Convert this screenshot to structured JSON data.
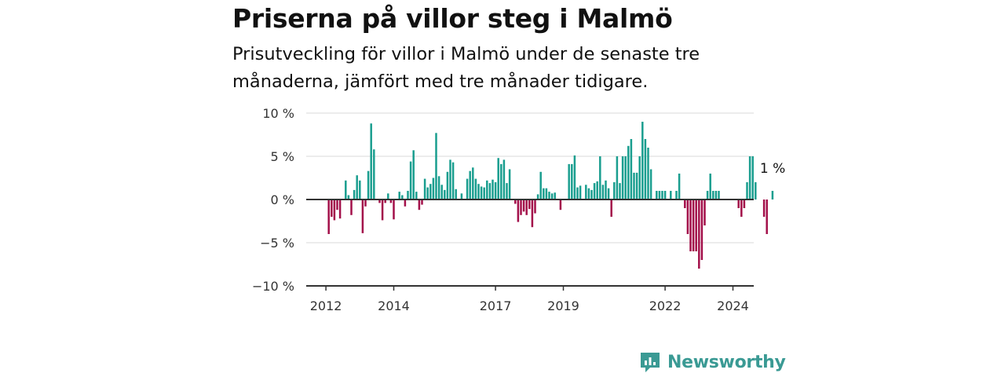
{
  "header": {
    "title": "Priserna på villor steg i Malmö",
    "subtitle": "Prisutveckling för villor i Malmö under de senaste tre månaderna, jämfört med tre månader tidigare."
  },
  "brand": {
    "name": "Newsworthy",
    "icon": "newsworthy-logo-icon"
  },
  "colors": {
    "positive": "#1a9e8f",
    "negative": "#a3104a",
    "grid": "#d9d9d9",
    "axis": "#333333"
  },
  "chart_data": {
    "type": "bar",
    "start": "2011-10",
    "unit": "%",
    "y_ticks": [
      "10 %",
      "5 %",
      "0 %",
      "−5 %",
      "−10 %"
    ],
    "y_tick_values": [
      10,
      5,
      0,
      -5,
      -10
    ],
    "ylim": [
      -10,
      10
    ],
    "x_ticks": [
      "2012",
      "2014",
      "2017",
      "2019",
      "2022",
      "2024"
    ],
    "annotation": {
      "label": "1 %",
      "value": 1
    },
    "grid": true,
    "values": [
      0,
      0,
      0,
      0,
      -4,
      -2,
      -2.4,
      -1.2,
      -2.2,
      0,
      2.2,
      0.5,
      -1.8,
      1.1,
      2.8,
      2.2,
      -3.9,
      -0.8,
      3.3,
      8.8,
      5.8,
      0,
      -0.4,
      -2.4,
      -0.4,
      0.7,
      -0.4,
      -2.3,
      0,
      0.9,
      0.5,
      -0.8,
      1,
      4.4,
      5.7,
      0.9,
      -1.2,
      -0.6,
      2.4,
      1.4,
      1.8,
      2.5,
      7.7,
      2.7,
      1.7,
      1.1,
      3.2,
      4.6,
      4.3,
      1.2,
      0,
      0.7,
      0,
      2.4,
      3.3,
      3.7,
      2.4,
      1.8,
      1.5,
      1.4,
      2.2,
      1.9,
      2.3,
      2,
      4.8,
      4.1,
      4.6,
      1.9,
      3.5,
      0,
      -0.5,
      -2.6,
      -1.8,
      -1.4,
      -1.8,
      -1.1,
      -3.2,
      -1.6,
      0.6,
      3.2,
      1.3,
      1.3,
      0.9,
      0.7,
      0.8,
      0,
      -1.2,
      0,
      0,
      4.1,
      4.1,
      5.1,
      1.4,
      1.6,
      0,
      1.7,
      1.3,
      1.1,
      1.9,
      2.1,
      5,
      1.7,
      2.2,
      1.3,
      -2,
      2,
      5,
      1.9,
      5,
      5,
      6.2,
      7,
      3.1,
      3.1,
      5,
      9,
      7,
      6,
      3.5,
      0,
      1,
      1,
      1,
      1,
      0,
      1,
      0,
      1,
      3,
      0,
      -1,
      -4,
      -6,
      -6,
      -6,
      -8,
      -7,
      -3,
      1,
      3,
      1,
      1,
      1,
      0,
      0,
      0,
      0,
      0,
      0,
      -1,
      -2,
      -1,
      2,
      5,
      5,
      2,
      0,
      0,
      -2,
      -4,
      0,
      1
    ]
  }
}
